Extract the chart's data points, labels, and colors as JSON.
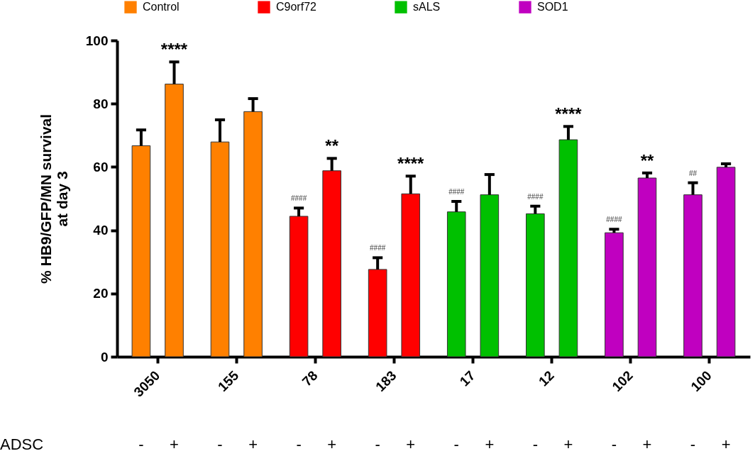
{
  "chart_data": {
    "type": "bar",
    "ylabel": "% HB9/GFP/MN survival at day 3",
    "categories": [
      "3050",
      "155",
      "78",
      "183",
      "17",
      "12",
      "102",
      "100"
    ],
    "series": [
      {
        "name": "Control",
        "color": "#ff8000",
        "values": [
          66.7,
          67.9,
          null,
          null,
          null,
          null,
          null,
          null
        ],
        "errors": [
          5.0,
          7.0,
          null,
          null,
          null,
          null,
          null,
          null
        ]
      },
      {
        "color": "#ff8000",
        "values": [
          86.2,
          77.5,
          null,
          null,
          null,
          null,
          null,
          null
        ],
        "errors": [
          7.0,
          4.1,
          null,
          null,
          null,
          null,
          null,
          null
        ],
        "value_labels": [
          "****",
          null,
          null,
          null,
          null,
          null,
          null,
          null
        ]
      },
      {
        "name": "C9orf72",
        "color": "#ff0000",
        "values": [
          null,
          null,
          44.4,
          27.6,
          null,
          null,
          null,
          null
        ],
        "errors": [
          null,
          null,
          2.6,
          3.7,
          null,
          null,
          null,
          null
        ],
        "value_labels": [
          null,
          null,
          "####",
          "####",
          null,
          null,
          null,
          null
        ]
      },
      {
        "color": "#ff0000",
        "values": [
          null,
          null,
          58.8,
          51.5,
          null,
          null,
          null,
          null
        ],
        "errors": [
          null,
          null,
          3.9,
          5.6,
          null,
          null,
          null,
          null
        ],
        "value_labels": [
          null,
          null,
          "**",
          "****",
          null,
          null,
          null,
          null
        ]
      },
      {
        "name": "sALS",
        "color": "#00c000",
        "values": [
          null,
          null,
          null,
          null,
          45.8,
          45.2,
          null,
          null
        ],
        "errors": [
          null,
          null,
          null,
          null,
          3.3,
          2.4,
          null,
          null
        ],
        "value_labels": [
          null,
          null,
          null,
          null,
          "####",
          "####",
          null,
          null
        ]
      },
      {
        "color": "#00c000",
        "values": [
          null,
          null,
          null,
          null,
          51.2,
          68.6,
          null,
          null
        ],
        "errors": [
          null,
          null,
          null,
          null,
          6.4,
          4.2,
          null,
          null
        ],
        "value_labels": [
          null,
          null,
          null,
          null,
          null,
          "****",
          null,
          null
        ]
      },
      {
        "name": "SOD1",
        "color": "#c000c0",
        "values": [
          null,
          null,
          null,
          null,
          null,
          null,
          39.2,
          51.2
        ],
        "errors": [
          null,
          null,
          null,
          null,
          null,
          null,
          1.1,
          3.8
        ],
        "value_labels": [
          null,
          null,
          null,
          null,
          null,
          null,
          "####",
          "##"
        ]
      },
      {
        "color": "#c000c0",
        "values": [
          null,
          null,
          null,
          null,
          null,
          null,
          56.5,
          59.9
        ],
        "errors": [
          null,
          null,
          null,
          null,
          null,
          null,
          1.6,
          1.1
        ],
        "value_labels": [
          null,
          null,
          null,
          null,
          null,
          null,
          "**",
          null
        ]
      }
    ],
    "annotations": [
      "ADSC",
      "-",
      "+",
      "-",
      "+",
      "-",
      "+",
      "-",
      "+",
      "-",
      "+",
      "-",
      "+",
      "-",
      "+",
      "-",
      "+"
    ],
    "legend": "top",
    "ylim": [
      0,
      100
    ],
    "yticks": [
      0,
      20,
      40,
      60,
      80,
      100
    ],
    "grid": false
  }
}
